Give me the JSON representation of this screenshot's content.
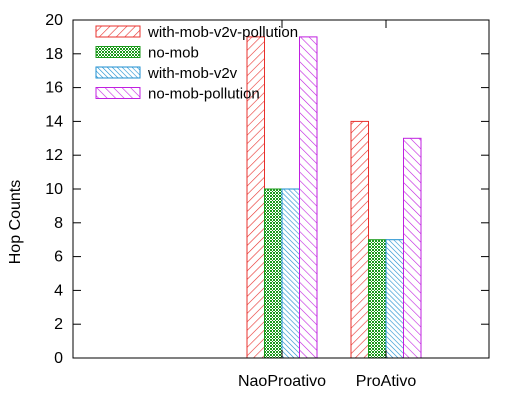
{
  "chart_data": {
    "type": "bar",
    "title": "",
    "xlabel": "",
    "ylabel": "Hop Counts",
    "ylim": [
      0,
      20
    ],
    "yticks": [
      0,
      2,
      4,
      6,
      8,
      10,
      12,
      14,
      16,
      18,
      20
    ],
    "grid": false,
    "legend_position": "top-left",
    "categories": [
      "NaoProativo",
      "ProAtivo"
    ],
    "series": [
      {
        "name": "with-mob-v2v-pollution",
        "values": [
          19,
          14
        ],
        "color": "#e8302c",
        "pattern": "hatch-up"
      },
      {
        "name": "no-mob",
        "values": [
          10,
          7
        ],
        "color": "#1a9a1a",
        "pattern": "dots"
      },
      {
        "name": "with-mob-v2v",
        "values": [
          10,
          7
        ],
        "color": "#1d8fd0",
        "pattern": "hatch-down"
      },
      {
        "name": "no-mob-pollution",
        "values": [
          19,
          13
        ],
        "color": "#c020e0",
        "pattern": "hatch-down-wide"
      }
    ]
  }
}
